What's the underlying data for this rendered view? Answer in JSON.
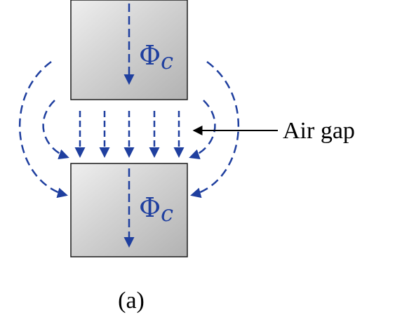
{
  "diagram": {
    "flux_symbol": "Φ",
    "flux_subscript": "c",
    "air_gap_label": "Air gap",
    "caption": "(a)",
    "colors": {
      "flux_lines": "#1f3f9f",
      "core_fill_light": "#e6e6e6",
      "core_fill_dark": "#b5b5b5",
      "core_border": "#1a1a1a",
      "pointer": "#000000",
      "text": "#000000"
    },
    "icons": [
      "dashed-flux-arrow",
      "solid-pointer-arrow"
    ]
  }
}
